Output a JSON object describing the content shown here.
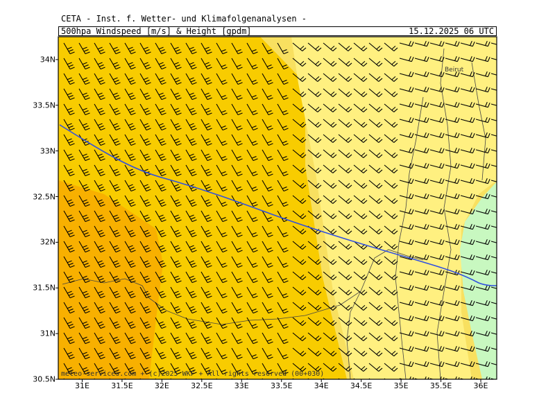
{
  "header": {
    "institute": "CETA - Inst. f. Wetter- und Klimafolgenanalysen -",
    "title": "500hpa Windspeed [m/s] & Height [gpdm]",
    "datetime": "15.12.2025 06 UTC"
  },
  "map": {
    "lat_range": [
      30.5,
      34.25
    ],
    "lon_range": [
      30.7,
      36.2
    ],
    "lat_labels": [
      "34N",
      "33.5N",
      "33N",
      "32.5N",
      "32N",
      "31.5N",
      "31N",
      "30.5N"
    ],
    "lat_values": [
      34,
      33.5,
      33,
      32.5,
      32,
      31.5,
      31,
      30.5
    ],
    "lon_labels": [
      "31E",
      "31.5E",
      "32E",
      "32.5E",
      "33E",
      "33.5E",
      "34E",
      "34.5E",
      "35E",
      "35.5E",
      "36E"
    ],
    "lon_values": [
      31,
      31.5,
      32,
      32.5,
      33,
      33.5,
      34,
      34.5,
      35,
      35.5,
      36
    ],
    "city_label": "Beirut",
    "colors": {
      "band_orange": "#f8b000",
      "band_gold": "#f8cc00",
      "band_yellow": "#f8e060",
      "band_pale": "#fff080",
      "band_green": "#c8f8c0",
      "height_contour": "#3050e0",
      "barb": "#000000"
    }
  },
  "copyright": "meteo-services.com + (c)2025 WKF + All rights reserved (00+030)"
}
